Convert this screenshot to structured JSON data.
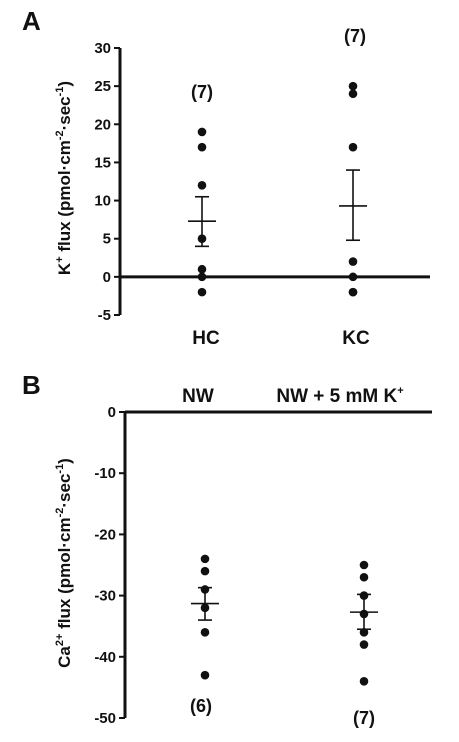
{
  "chart_data": [
    {
      "type": "scatter",
      "panel_label": "A",
      "ylabel": {
        "pre": "K",
        "sup1": "+",
        "mid": " flux (pmol·cm",
        "sup2": "-2",
        "mid2": "sec",
        "sup3": "-1",
        "post": ")"
      },
      "ylim": [
        -5,
        30
      ],
      "yticks": [
        "30",
        "25",
        "20",
        "15",
        "10",
        "5",
        "0",
        "-5"
      ],
      "categories": [
        "HC",
        "KC"
      ],
      "groups": [
        {
          "category": "HC",
          "n_label": "(7)",
          "points": [
            19,
            17,
            12,
            5,
            1,
            0,
            -2
          ],
          "mean": 7.3,
          "sem_low": 4.0,
          "sem_high": 10.5
        },
        {
          "category": "KC",
          "n_label": "(7)",
          "points": [
            25,
            24,
            17,
            2,
            0,
            -2,
            -2
          ],
          "mean": 9.3,
          "sem_low": 4.8,
          "sem_high": 14.0
        }
      ]
    },
    {
      "type": "scatter",
      "panel_label": "B",
      "ylabel": {
        "pre": "Ca",
        "sup1": "2+",
        "mid": " flux (pmol·cm",
        "sup2": "-2",
        "mid2": "sec",
        "sup3": "-1",
        "post": ")"
      },
      "ylim": [
        -50,
        0
      ],
      "yticks": [
        "0",
        "-10",
        "-20",
        "-30",
        "-40",
        "-50"
      ],
      "categories": [
        "NW",
        "NW + 5 mM K+"
      ],
      "category_labels": {
        "nw": "NW",
        "nwk_pre": "NW + 5 mM K",
        "nwk_sup": "+"
      },
      "groups": [
        {
          "category": "NW",
          "n_label": "(6)",
          "points": [
            -24,
            -26,
            -29,
            -32,
            -36,
            -43
          ],
          "mean": -31.3,
          "sem_low": -34.0,
          "sem_high": -28.7
        },
        {
          "category": "NW + 5 mM K+",
          "n_label": "(7)",
          "points": [
            -25,
            -27,
            -30,
            -33,
            -36,
            -38,
            -44
          ],
          "mean": -32.7,
          "sem_low": -35.5,
          "sem_high": -29.8
        }
      ]
    }
  ]
}
